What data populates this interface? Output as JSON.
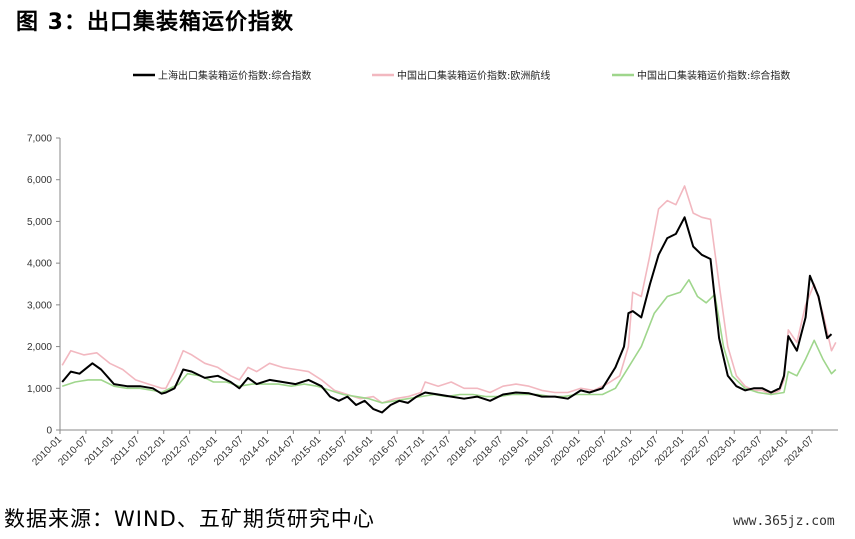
{
  "figure_title": "图 3：出口集装箱运价指数",
  "source": "数据来源：WIND、五矿期货研究中心",
  "watermark": "www.365jz.com",
  "chart_data": {
    "type": "line",
    "ylim": [
      0,
      7000
    ],
    "yticks": [
      0,
      1000,
      2000,
      3000,
      4000,
      5000,
      6000,
      7000
    ],
    "ytick_labels": [
      "0",
      "1,000",
      "2,000",
      "3,000",
      "4,000",
      "5,000",
      "6,000",
      "7,000"
    ],
    "x_start": "2010-01",
    "x_end": "2024-12",
    "xtick_labels": [
      "2010-01",
      "2010-07",
      "2011-01",
      "2011-07",
      "2012-01",
      "2012-07",
      "2013-01",
      "2013-07",
      "2014-01",
      "2014-07",
      "2015-01",
      "2015-07",
      "2016-01",
      "2016-07",
      "2017-01",
      "2017-07",
      "2018-01",
      "2018-07",
      "2019-01",
      "2019-07",
      "2020-01",
      "2020-07",
      "2021-01",
      "2021-07",
      "2022-01",
      "2022-07",
      "2023-01",
      "2023-07",
      "2024-01",
      "2024-07"
    ],
    "legend_position": "top",
    "grid": false,
    "series": [
      {
        "name": "上海出口集装箱运价指数:综合指数",
        "color": "#000000",
        "points": [
          [
            "2010-01",
            1150
          ],
          [
            "2010-03",
            1400
          ],
          [
            "2010-05",
            1350
          ],
          [
            "2010-08",
            1600
          ],
          [
            "2010-10",
            1450
          ],
          [
            "2011-01",
            1100
          ],
          [
            "2011-04",
            1050
          ],
          [
            "2011-07",
            1050
          ],
          [
            "2011-10",
            1000
          ],
          [
            "2011-12",
            870
          ],
          [
            "2012-01",
            900
          ],
          [
            "2012-03",
            1000
          ],
          [
            "2012-05",
            1450
          ],
          [
            "2012-07",
            1400
          ],
          [
            "2012-10",
            1250
          ],
          [
            "2013-01",
            1300
          ],
          [
            "2013-04",
            1150
          ],
          [
            "2013-06",
            1000
          ],
          [
            "2013-08",
            1250
          ],
          [
            "2013-10",
            1100
          ],
          [
            "2014-01",
            1200
          ],
          [
            "2014-04",
            1150
          ],
          [
            "2014-07",
            1100
          ],
          [
            "2014-10",
            1200
          ],
          [
            "2015-01",
            1050
          ],
          [
            "2015-03",
            800
          ],
          [
            "2015-05",
            700
          ],
          [
            "2015-07",
            800
          ],
          [
            "2015-09",
            600
          ],
          [
            "2015-11",
            700
          ],
          [
            "2016-01",
            500
          ],
          [
            "2016-03",
            420
          ],
          [
            "2016-05",
            600
          ],
          [
            "2016-07",
            700
          ],
          [
            "2016-09",
            650
          ],
          [
            "2016-11",
            800
          ],
          [
            "2017-01",
            900
          ],
          [
            "2017-04",
            850
          ],
          [
            "2017-07",
            800
          ],
          [
            "2017-10",
            750
          ],
          [
            "2018-01",
            800
          ],
          [
            "2018-04",
            700
          ],
          [
            "2018-07",
            850
          ],
          [
            "2018-10",
            900
          ],
          [
            "2019-01",
            880
          ],
          [
            "2019-04",
            800
          ],
          [
            "2019-07",
            800
          ],
          [
            "2019-10",
            750
          ],
          [
            "2020-01",
            950
          ],
          [
            "2020-03",
            900
          ],
          [
            "2020-06",
            1000
          ],
          [
            "2020-09",
            1500
          ],
          [
            "2020-11",
            2000
          ],
          [
            "2020-12",
            2800
          ],
          [
            "2021-01",
            2850
          ],
          [
            "2021-03",
            2700
          ],
          [
            "2021-05",
            3500
          ],
          [
            "2021-07",
            4200
          ],
          [
            "2021-09",
            4600
          ],
          [
            "2021-11",
            4700
          ],
          [
            "2022-01",
            5100
          ],
          [
            "2022-03",
            4400
          ],
          [
            "2022-05",
            4200
          ],
          [
            "2022-07",
            4100
          ],
          [
            "2022-09",
            2200
          ],
          [
            "2022-11",
            1300
          ],
          [
            "2023-01",
            1050
          ],
          [
            "2023-03",
            950
          ],
          [
            "2023-05",
            1000
          ],
          [
            "2023-07",
            1000
          ],
          [
            "2023-09",
            900
          ],
          [
            "2023-11",
            1000
          ],
          [
            "2023-12",
            1300
          ],
          [
            "2024-01",
            2250
          ],
          [
            "2024-03",
            1900
          ],
          [
            "2024-05",
            2700
          ],
          [
            "2024-06",
            3700
          ],
          [
            "2024-08",
            3200
          ],
          [
            "2024-10",
            2200
          ],
          [
            "2024-11",
            2300
          ]
        ]
      },
      {
        "name": "中国出口集装箱运价指数:欧洲航线",
        "color": "#f2b8c0",
        "points": [
          [
            "2010-01",
            1550
          ],
          [
            "2010-03",
            1900
          ],
          [
            "2010-06",
            1800
          ],
          [
            "2010-09",
            1850
          ],
          [
            "2010-12",
            1600
          ],
          [
            "2011-03",
            1450
          ],
          [
            "2011-06",
            1200
          ],
          [
            "2011-09",
            1100
          ],
          [
            "2011-12",
            1000
          ],
          [
            "2012-01",
            1000
          ],
          [
            "2012-03",
            1400
          ],
          [
            "2012-05",
            1900
          ],
          [
            "2012-07",
            1800
          ],
          [
            "2012-10",
            1600
          ],
          [
            "2013-01",
            1500
          ],
          [
            "2013-04",
            1300
          ],
          [
            "2013-06",
            1200
          ],
          [
            "2013-08",
            1500
          ],
          [
            "2013-10",
            1400
          ],
          [
            "2014-01",
            1600
          ],
          [
            "2014-04",
            1500
          ],
          [
            "2014-07",
            1450
          ],
          [
            "2014-10",
            1400
          ],
          [
            "2015-01",
            1200
          ],
          [
            "2015-04",
            950
          ],
          [
            "2015-07",
            850
          ],
          [
            "2015-10",
            750
          ],
          [
            "2016-01",
            800
          ],
          [
            "2016-03",
            650
          ],
          [
            "2016-06",
            750
          ],
          [
            "2016-09",
            800
          ],
          [
            "2016-12",
            900
          ],
          [
            "2017-01",
            1150
          ],
          [
            "2017-04",
            1050
          ],
          [
            "2017-07",
            1150
          ],
          [
            "2017-10",
            1000
          ],
          [
            "2018-01",
            1000
          ],
          [
            "2018-04",
            900
          ],
          [
            "2018-07",
            1050
          ],
          [
            "2018-10",
            1100
          ],
          [
            "2019-01",
            1050
          ],
          [
            "2019-04",
            950
          ],
          [
            "2019-07",
            900
          ],
          [
            "2019-10",
            900
          ],
          [
            "2020-01",
            1000
          ],
          [
            "2020-04",
            950
          ],
          [
            "2020-07",
            1100
          ],
          [
            "2020-10",
            1300
          ],
          [
            "2020-12",
            2000
          ],
          [
            "2021-01",
            3300
          ],
          [
            "2021-03",
            3200
          ],
          [
            "2021-05",
            4200
          ],
          [
            "2021-07",
            5300
          ],
          [
            "2021-09",
            5500
          ],
          [
            "2021-11",
            5400
          ],
          [
            "2022-01",
            5850
          ],
          [
            "2022-03",
            5200
          ],
          [
            "2022-05",
            5100
          ],
          [
            "2022-07",
            5050
          ],
          [
            "2022-09",
            3500
          ],
          [
            "2022-11",
            2000
          ],
          [
            "2023-01",
            1300
          ],
          [
            "2023-03",
            1050
          ],
          [
            "2023-05",
            950
          ],
          [
            "2023-07",
            950
          ],
          [
            "2023-09",
            850
          ],
          [
            "2023-11",
            950
          ],
          [
            "2023-12",
            1200
          ],
          [
            "2024-01",
            2400
          ],
          [
            "2024-03",
            2100
          ],
          [
            "2024-05",
            3000
          ],
          [
            "2024-07",
            3500
          ],
          [
            "2024-09",
            2800
          ],
          [
            "2024-11",
            1900
          ],
          [
            "2024-12",
            2100
          ]
        ]
      },
      {
        "name": "中国出口集装箱运价指数:综合指数",
        "color": "#9fd68c",
        "points": [
          [
            "2010-01",
            1050
          ],
          [
            "2010-04",
            1150
          ],
          [
            "2010-07",
            1200
          ],
          [
            "2010-10",
            1200
          ],
          [
            "2011-01",
            1050
          ],
          [
            "2011-04",
            1000
          ],
          [
            "2011-07",
            1000
          ],
          [
            "2011-10",
            950
          ],
          [
            "2011-12",
            900
          ],
          [
            "2012-01",
            950
          ],
          [
            "2012-04",
            1100
          ],
          [
            "2012-06",
            1350
          ],
          [
            "2012-09",
            1300
          ],
          [
            "2012-12",
            1150
          ],
          [
            "2013-03",
            1150
          ],
          [
            "2013-06",
            1050
          ],
          [
            "2013-09",
            1100
          ],
          [
            "2013-12",
            1100
          ],
          [
            "2014-03",
            1100
          ],
          [
            "2014-06",
            1050
          ],
          [
            "2014-09",
            1100
          ],
          [
            "2014-12",
            1050
          ],
          [
            "2015-03",
            950
          ],
          [
            "2015-06",
            850
          ],
          [
            "2015-09",
            800
          ],
          [
            "2015-12",
            750
          ],
          [
            "2016-03",
            650
          ],
          [
            "2016-06",
            700
          ],
          [
            "2016-09",
            750
          ],
          [
            "2016-12",
            800
          ],
          [
            "2017-03",
            850
          ],
          [
            "2017-06",
            800
          ],
          [
            "2017-09",
            850
          ],
          [
            "2017-12",
            850
          ],
          [
            "2018-03",
            800
          ],
          [
            "2018-06",
            800
          ],
          [
            "2018-09",
            850
          ],
          [
            "2018-12",
            850
          ],
          [
            "2019-03",
            850
          ],
          [
            "2019-06",
            800
          ],
          [
            "2019-09",
            800
          ],
          [
            "2019-12",
            850
          ],
          [
            "2020-03",
            850
          ],
          [
            "2020-06",
            850
          ],
          [
            "2020-09",
            1000
          ],
          [
            "2020-12",
            1500
          ],
          [
            "2021-03",
            2000
          ],
          [
            "2021-06",
            2800
          ],
          [
            "2021-09",
            3200
          ],
          [
            "2021-12",
            3300
          ],
          [
            "2022-02",
            3600
          ],
          [
            "2022-04",
            3200
          ],
          [
            "2022-06",
            3050
          ],
          [
            "2022-08",
            3250
          ],
          [
            "2022-10",
            2000
          ],
          [
            "2022-12",
            1300
          ],
          [
            "2023-03",
            1000
          ],
          [
            "2023-06",
            900
          ],
          [
            "2023-09",
            850
          ],
          [
            "2023-12",
            900
          ],
          [
            "2024-01",
            1400
          ],
          [
            "2024-03",
            1300
          ],
          [
            "2024-05",
            1700
          ],
          [
            "2024-07",
            2150
          ],
          [
            "2024-09",
            1700
          ],
          [
            "2024-11",
            1350
          ],
          [
            "2024-12",
            1450
          ]
        ]
      }
    ]
  }
}
